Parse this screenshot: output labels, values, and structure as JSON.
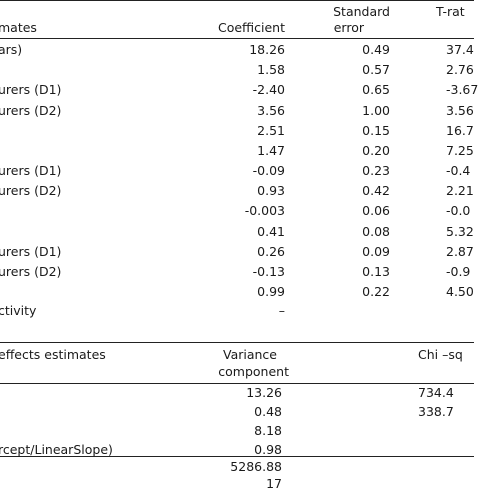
{
  "fixed_header": {
    "label": "mates",
    "coefficient": "Coefficient",
    "standard_error_line1": "Standard",
    "standard_error_line2": "error",
    "t_ratio": "T-rat"
  },
  "fixed_rows": [
    {
      "label": "ars)",
      "coef": "18.26",
      "se": "0.49",
      "t": "37.4"
    },
    {
      "label": "",
      "coef": "1.58",
      "se": "0.57",
      "t": "2.76"
    },
    {
      "label": "urers (D1)",
      "coef": "-2.40",
      "se": "0.65",
      "t": "-3.67"
    },
    {
      "label": "urers (D2)",
      "coef": "3.56",
      "se": "1.00",
      "t": "3.56"
    },
    {
      "label": "",
      "coef": "2.51",
      "se": "0.15",
      "t": "16.7"
    },
    {
      "label": "",
      "coef": "1.47",
      "se": "0.20",
      "t": "7.25"
    },
    {
      "label": "urers (D1)",
      "coef": "-0.09",
      "se": "0.23",
      "t": "-0.4"
    },
    {
      "label": "urers (D2)",
      "coef": "0.93",
      "se": "0.42",
      "t": "2.21"
    },
    {
      "label": "",
      "coef": "-0.003",
      "se": "0.06",
      "t": "-0.0"
    },
    {
      "label": "",
      "coef": "0.41",
      "se": "0.08",
      "t": "5.32"
    },
    {
      "label": "urers (D1)",
      "coef": "0.26",
      "se": "0.09",
      "t": "2.87"
    },
    {
      "label": "urers (D2)",
      "coef": "-0.13",
      "se": "0.13",
      "t": "-0.9"
    },
    {
      "label": "",
      "coef": "0.99",
      "se": "0.22",
      "t": "4.50"
    },
    {
      "label": "ctivity",
      "coef": "–",
      "se": "",
      "t": ""
    }
  ],
  "random_header": {
    "label": "effects estimates",
    "variance_line1": "Variance",
    "variance_line2": "component",
    "chi_squared": "Chi –sq"
  },
  "random_rows": [
    {
      "label": "",
      "variance": "13.26",
      "chi": "734.4"
    },
    {
      "label": "",
      "variance": "0.48",
      "chi": "338.7"
    },
    {
      "label": "",
      "variance": "8.18",
      "chi": ""
    },
    {
      "label": "rcept/LinearSlope)",
      "variance": "0.98",
      "chi": ""
    },
    {
      "label": "",
      "variance": "5286.88",
      "chi": ""
    },
    {
      "label": "",
      "variance": "17",
      "chi": ""
    }
  ]
}
